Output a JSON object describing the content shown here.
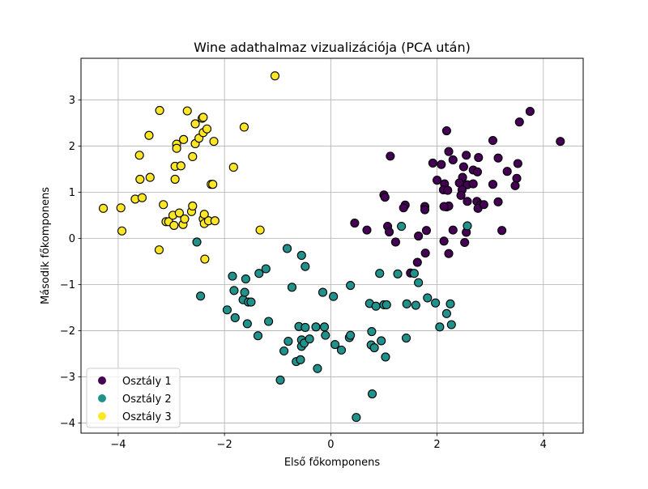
{
  "chart_data": {
    "type": "scatter",
    "title": "Wine adathalmaz vizualizációja (PCA után)",
    "xlabel": "Első főkomponens",
    "ylabel": "Második főkomponens",
    "xlim": [
      -4.7,
      4.75
    ],
    "ylim": [
      -4.22,
      3.9
    ],
    "x_ticks": [
      -4,
      -2,
      0,
      2,
      4
    ],
    "y_ticks": [
      -4,
      -3,
      -2,
      -1,
      0,
      1,
      2,
      3
    ],
    "x_tick_labels": [
      "−4",
      "−2",
      "0",
      "2",
      "4"
    ],
    "y_tick_labels": [
      "−4",
      "−3",
      "−2",
      "−1",
      "0",
      "1",
      "2",
      "3"
    ],
    "grid": true,
    "legend_position": "lower-left",
    "series": [
      {
        "name": "Osztály 1",
        "color": "#440154",
        "points": [
          [
            4.32,
            2.1
          ],
          [
            3.75,
            2.75
          ],
          [
            3.55,
            2.52
          ],
          [
            3.05,
            2.12
          ],
          [
            2.18,
            2.33
          ],
          [
            3.52,
            1.62
          ],
          [
            3.15,
            1.74
          ],
          [
            3.32,
            1.45
          ],
          [
            3.5,
            1.3
          ],
          [
            3.05,
            1.17
          ],
          [
            3.47,
            1.14
          ],
          [
            3.15,
            0.79
          ],
          [
            3.22,
            0.17
          ],
          [
            2.78,
            1.75
          ],
          [
            2.55,
            1.8
          ],
          [
            2.3,
            1.7
          ],
          [
            2.22,
            1.88
          ],
          [
            2.08,
            1.6
          ],
          [
            1.92,
            1.63
          ],
          [
            2.5,
            1.55
          ],
          [
            2.68,
            1.48
          ],
          [
            2.76,
            1.44
          ],
          [
            2.48,
            1.32
          ],
          [
            2.42,
            1.2
          ],
          [
            2.57,
            1.16
          ],
          [
            2.68,
            1.18
          ],
          [
            2.0,
            1.26
          ],
          [
            2.14,
            1.18
          ],
          [
            2.12,
            1.05
          ],
          [
            2.2,
            1.04
          ],
          [
            2.47,
            1.05
          ],
          [
            2.45,
            0.93
          ],
          [
            2.57,
            0.8
          ],
          [
            2.75,
            0.8
          ],
          [
            2.82,
            0.73
          ],
          [
            2.77,
            0.65
          ],
          [
            2.88,
            0.73
          ],
          [
            2.18,
            0.68
          ],
          [
            2.22,
            0.7
          ],
          [
            2.13,
            0.69
          ],
          [
            1.77,
            0.69
          ],
          [
            1.77,
            0.62
          ],
          [
            1.4,
            0.72
          ],
          [
            1.37,
            0.66
          ],
          [
            1.0,
            0.94
          ],
          [
            1.02,
            0.89
          ],
          [
            1.12,
            1.78
          ],
          [
            0.45,
            0.33
          ],
          [
            0.68,
            0.18
          ],
          [
            1.07,
            0.26
          ],
          [
            1.1,
            0.14
          ],
          [
            1.22,
            -0.08
          ],
          [
            1.65,
            0.05
          ],
          [
            1.8,
            0.17
          ],
          [
            1.78,
            -0.32
          ],
          [
            1.63,
            -0.52
          ],
          [
            1.5,
            -0.75
          ],
          [
            2.22,
            -0.33
          ],
          [
            2.3,
            0.18
          ],
          [
            2.13,
            -0.06
          ],
          [
            2.52,
            -0.09
          ],
          [
            2.55,
            0.13
          ]
        ]
      },
      {
        "name": "Osztály 2",
        "color": "#21918c",
        "points": [
          [
            -2.52,
            -0.08
          ],
          [
            -2.45,
            -1.25
          ],
          [
            -1.95,
            -1.55
          ],
          [
            -1.85,
            -0.82
          ],
          [
            -1.82,
            -1.13
          ],
          [
            -1.8,
            -1.72
          ],
          [
            -1.65,
            -1.33
          ],
          [
            -1.6,
            -0.88
          ],
          [
            -1.62,
            -1.17
          ],
          [
            -1.55,
            -1.38
          ],
          [
            -1.57,
            -1.85
          ],
          [
            -1.5,
            -1.38
          ],
          [
            -1.35,
            -0.76
          ],
          [
            -1.37,
            -2.11
          ],
          [
            -1.22,
            -0.66
          ],
          [
            -1.17,
            -1.8
          ],
          [
            -0.95,
            -3.07
          ],
          [
            -0.88,
            -2.44
          ],
          [
            -0.82,
            -0.22
          ],
          [
            -0.8,
            -2.23
          ],
          [
            -0.73,
            -1.06
          ],
          [
            -0.65,
            -2.67
          ],
          [
            -0.6,
            -1.91
          ],
          [
            -0.55,
            -0.37
          ],
          [
            -0.57,
            -2.63
          ],
          [
            -0.55,
            -2.2
          ],
          [
            -0.55,
            -2.34
          ],
          [
            -0.5,
            -2.27
          ],
          [
            -0.48,
            -1.93
          ],
          [
            -0.48,
            -0.61
          ],
          [
            -0.4,
            -2.18
          ],
          [
            -0.28,
            -1.92
          ],
          [
            -0.25,
            -2.82
          ],
          [
            -0.15,
            -1.17
          ],
          [
            -0.12,
            -1.92
          ],
          [
            -0.1,
            -2.1
          ],
          [
            0.05,
            -1.26
          ],
          [
            0.08,
            -2.3
          ],
          [
            0.2,
            -2.42
          ],
          [
            0.35,
            -2.15
          ],
          [
            0.37,
            -2.1
          ],
          [
            0.37,
            -1.02
          ],
          [
            0.48,
            -3.88
          ],
          [
            0.73,
            -1.41
          ],
          [
            0.76,
            -2.31
          ],
          [
            0.77,
            -2.02
          ],
          [
            0.78,
            -3.37
          ],
          [
            0.82,
            -2.37
          ],
          [
            0.85,
            -1.47
          ],
          [
            0.92,
            -0.76
          ],
          [
            0.95,
            -2.22
          ],
          [
            1.0,
            -1.44
          ],
          [
            1.03,
            -2.57
          ],
          [
            1.05,
            -1.44
          ],
          [
            1.26,
            -0.77
          ],
          [
            1.33,
            0.26
          ],
          [
            1.42,
            -2.16
          ],
          [
            1.43,
            -1.42
          ],
          [
            1.57,
            -0.76
          ],
          [
            1.6,
            -1.45
          ],
          [
            1.65,
            -0.96
          ],
          [
            1.82,
            -1.29
          ],
          [
            1.97,
            -1.4
          ],
          [
            2.05,
            -1.92
          ],
          [
            2.18,
            -1.63
          ],
          [
            2.27,
            -1.87
          ],
          [
            2.25,
            -1.42
          ],
          [
            2.57,
            0.27
          ]
        ]
      },
      {
        "name": "Osztály 3",
        "color": "#fde725",
        "points": [
          [
            -4.28,
            0.65
          ],
          [
            -3.95,
            0.66
          ],
          [
            -3.93,
            0.16
          ],
          [
            -3.68,
            0.85
          ],
          [
            -3.55,
            0.88
          ],
          [
            -3.59,
            1.28
          ],
          [
            -3.6,
            1.8
          ],
          [
            -3.42,
            2.23
          ],
          [
            -3.4,
            1.32
          ],
          [
            -3.22,
            2.77
          ],
          [
            -3.23,
            -0.25
          ],
          [
            -3.15,
            0.73
          ],
          [
            -3.1,
            0.36
          ],
          [
            -3.05,
            0.36
          ],
          [
            -2.97,
            0.5
          ],
          [
            -2.95,
            0.28
          ],
          [
            -2.93,
            1.56
          ],
          [
            -2.93,
            1.28
          ],
          [
            -2.9,
            2.04
          ],
          [
            -2.9,
            1.95
          ],
          [
            -2.85,
            0.55
          ],
          [
            -2.82,
            1.57
          ],
          [
            -2.78,
            0.3
          ],
          [
            -2.77,
            2.14
          ],
          [
            -2.75,
            0.42
          ],
          [
            -2.7,
            2.76
          ],
          [
            -2.62,
            0.58
          ],
          [
            -2.6,
            1.77
          ],
          [
            -2.6,
            0.7
          ],
          [
            -2.55,
            2.05
          ],
          [
            -2.55,
            2.48
          ],
          [
            -2.48,
            2.17
          ],
          [
            -2.42,
            2.6
          ],
          [
            -2.4,
            2.62
          ],
          [
            -2.4,
            2.29
          ],
          [
            -2.4,
            0.42
          ],
          [
            -2.38,
            0.52
          ],
          [
            -2.38,
            0.32
          ],
          [
            -2.37,
            -0.45
          ],
          [
            -2.33,
            2.37
          ],
          [
            -2.3,
            0.38
          ],
          [
            -2.25,
            1.17
          ],
          [
            -2.22,
            1.17
          ],
          [
            -2.18,
            0.38
          ],
          [
            -2.2,
            2.1
          ],
          [
            -1.83,
            1.54
          ],
          [
            -1.63,
            2.41
          ],
          [
            -1.33,
            0.18
          ],
          [
            -1.05,
            3.52
          ]
        ]
      }
    ]
  }
}
